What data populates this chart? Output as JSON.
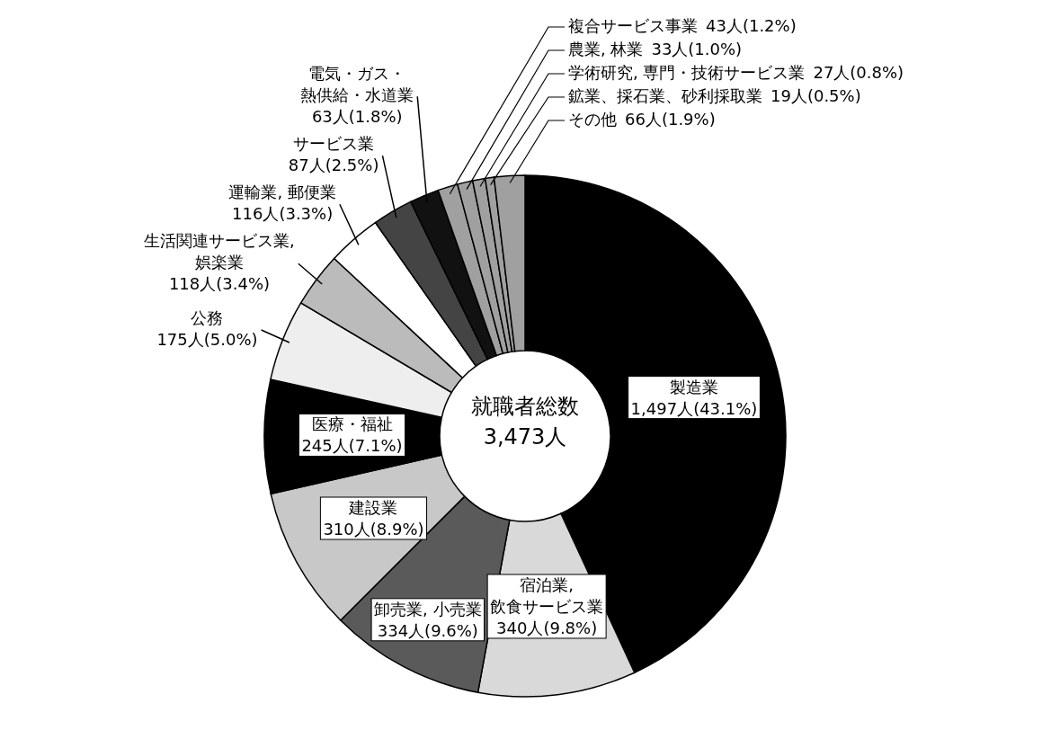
{
  "chart_data": {
    "type": "donut",
    "title": "就職者総数",
    "subtitle": "3,473人",
    "categories": [
      "製造業",
      "宿泊業, 飲食サービス業",
      "卸売業, 小売業",
      "建設業",
      "医療・福祉",
      "公務",
      "生活関連サービス業, 娯楽業",
      "運輸業, 郵便業",
      "サービス業",
      "電気・ガス・熱供給・水道業",
      "複合サービス事業",
      "農業, 林業",
      "学術研究, 専門・技術サービス業",
      "鉱業、採石業、砂利採取業",
      "その他"
    ],
    "values": [
      1497,
      340,
      334,
      310,
      245,
      175,
      118,
      116,
      87,
      63,
      43,
      33,
      27,
      19,
      66
    ],
    "value_labels": [
      "1,497人(43.1%)",
      "340人(9.8%)",
      "334人(9.6%)",
      "310人(8.9%)",
      "245人(7.1%)",
      "175人(5.0%)",
      "118人(3.4%)",
      "116人(3.3%)",
      "87人(2.5%)",
      "63人(1.8%)",
      "43人(1.2%)",
      "33人(1.0%)",
      "27人(0.8%)",
      "19人(0.5%)",
      "66人(1.9%)"
    ],
    "colors": [
      "#000000",
      "#d9d9d9",
      "#5a5a5a",
      "#c8c8c8",
      "#000000",
      "#eeeeee",
      "#bbbbbb",
      "#ffffff",
      "#444444",
      "#111111",
      "#a0a0a0",
      "#a0a0a0",
      "#a0a0a0",
      "#a0a0a0",
      "#a0a0a0"
    ]
  }
}
